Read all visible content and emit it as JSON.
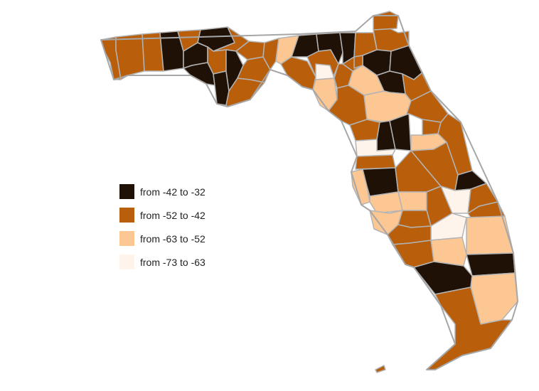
{
  "colors": {
    "class1": "#1f1106",
    "class2": "#b95f0b",
    "class3": "#fdc794",
    "class4": "#fff4ec",
    "border": "#b3b3b3",
    "outline": "#a6a6a6"
  },
  "legend": {
    "items": [
      {
        "label": "from -42 to -32",
        "color": "#1f1106"
      },
      {
        "label": "from -52 to -42",
        "color": "#b95f0b"
      },
      {
        "label": "from -63 to -52",
        "color": "#fdc794"
      },
      {
        "label": "from -73 to -63",
        "color": "#fff4ec"
      }
    ]
  }
}
